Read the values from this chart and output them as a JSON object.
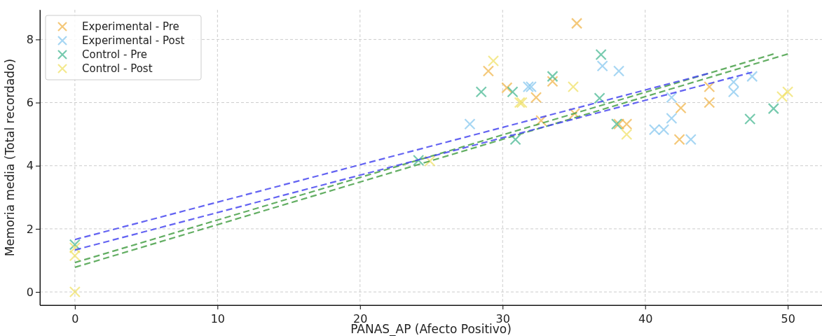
{
  "chart_data": {
    "type": "scatter",
    "xlabel": "PANAS_AP (Afecto Positivo)",
    "ylabel": "Memoria media (Total recordado)",
    "xlim": [
      -2.45,
      52.4
    ],
    "ylim": [
      -0.42,
      8.94
    ],
    "xticks": [
      0,
      10,
      20,
      30,
      40,
      50
    ],
    "yticks": [
      0,
      2,
      4,
      6,
      8
    ],
    "grid": true,
    "legend": "top left",
    "marker": "cross",
    "series": [
      {
        "name": "Experimental - Pre",
        "color": "#f0b040",
        "x": [
          29.0,
          30.3,
          32.35,
          33.5,
          35.2,
          32.7,
          35.05,
          38.15,
          38.7,
          42.4,
          42.5,
          44.5,
          44.5
        ],
        "values": [
          7.0,
          6.47,
          6.16,
          6.67,
          8.51,
          5.43,
          5.65,
          5.32,
          5.32,
          4.83,
          5.83,
          6.5,
          6.0
        ]
      },
      {
        "name": "Experimental - Post",
        "color": "#80c4ee",
        "x": [
          27.7,
          31.8,
          32.0,
          37.0,
          38.15,
          41.85,
          41.85,
          40.65,
          41.3,
          43.2,
          46.2,
          46.2,
          47.5
        ],
        "values": [
          5.32,
          6.5,
          6.5,
          7.16,
          7.0,
          6.16,
          5.5,
          5.14,
          5.14,
          4.83,
          6.65,
          6.34,
          6.83
        ]
      },
      {
        "name": "Control - Pre",
        "color": "#3cb48c",
        "x": [
          0,
          24.1,
          28.5,
          30.7,
          30.9,
          33.5,
          36.9,
          36.8,
          38.0,
          47.35,
          49.0
        ],
        "values": [
          1.5,
          4.17,
          6.34,
          6.34,
          4.83,
          6.83,
          7.52,
          6.14,
          5.32,
          5.48,
          5.81
        ]
      },
      {
        "name": "Control - Post",
        "color": "#f0e060",
        "x": [
          0,
          0,
          0,
          24.9,
          29.35,
          31.2,
          31.35,
          34.95,
          38.7,
          49.6,
          50.0
        ],
        "values": [
          1.4,
          1.15,
          0,
          4.15,
          7.32,
          6.0,
          6.0,
          6.5,
          4.99,
          6.19,
          6.34
        ]
      },
      {
        "type": "line",
        "marker": "none",
        "color": "#4848f0",
        "line_style": "dashed",
        "x": [
          0,
          44.4
        ],
        "values": [
          1.66,
          6.92
        ]
      },
      {
        "type": "line",
        "marker": "none",
        "color": "#4848f0",
        "line_style": "dashed",
        "x": [
          0,
          47.5
        ],
        "values": [
          1.33,
          6.96
        ]
      },
      {
        "type": "line",
        "marker": "none",
        "color": "#48a048",
        "line_style": "dashed",
        "x": [
          0,
          49.0
        ],
        "values": [
          0.93,
          7.54
        ]
      },
      {
        "type": "line",
        "marker": "none",
        "color": "#48a048",
        "line_style": "dashed",
        "x": [
          0,
          50.0
        ],
        "values": [
          0.78,
          7.54
        ]
      }
    ]
  }
}
